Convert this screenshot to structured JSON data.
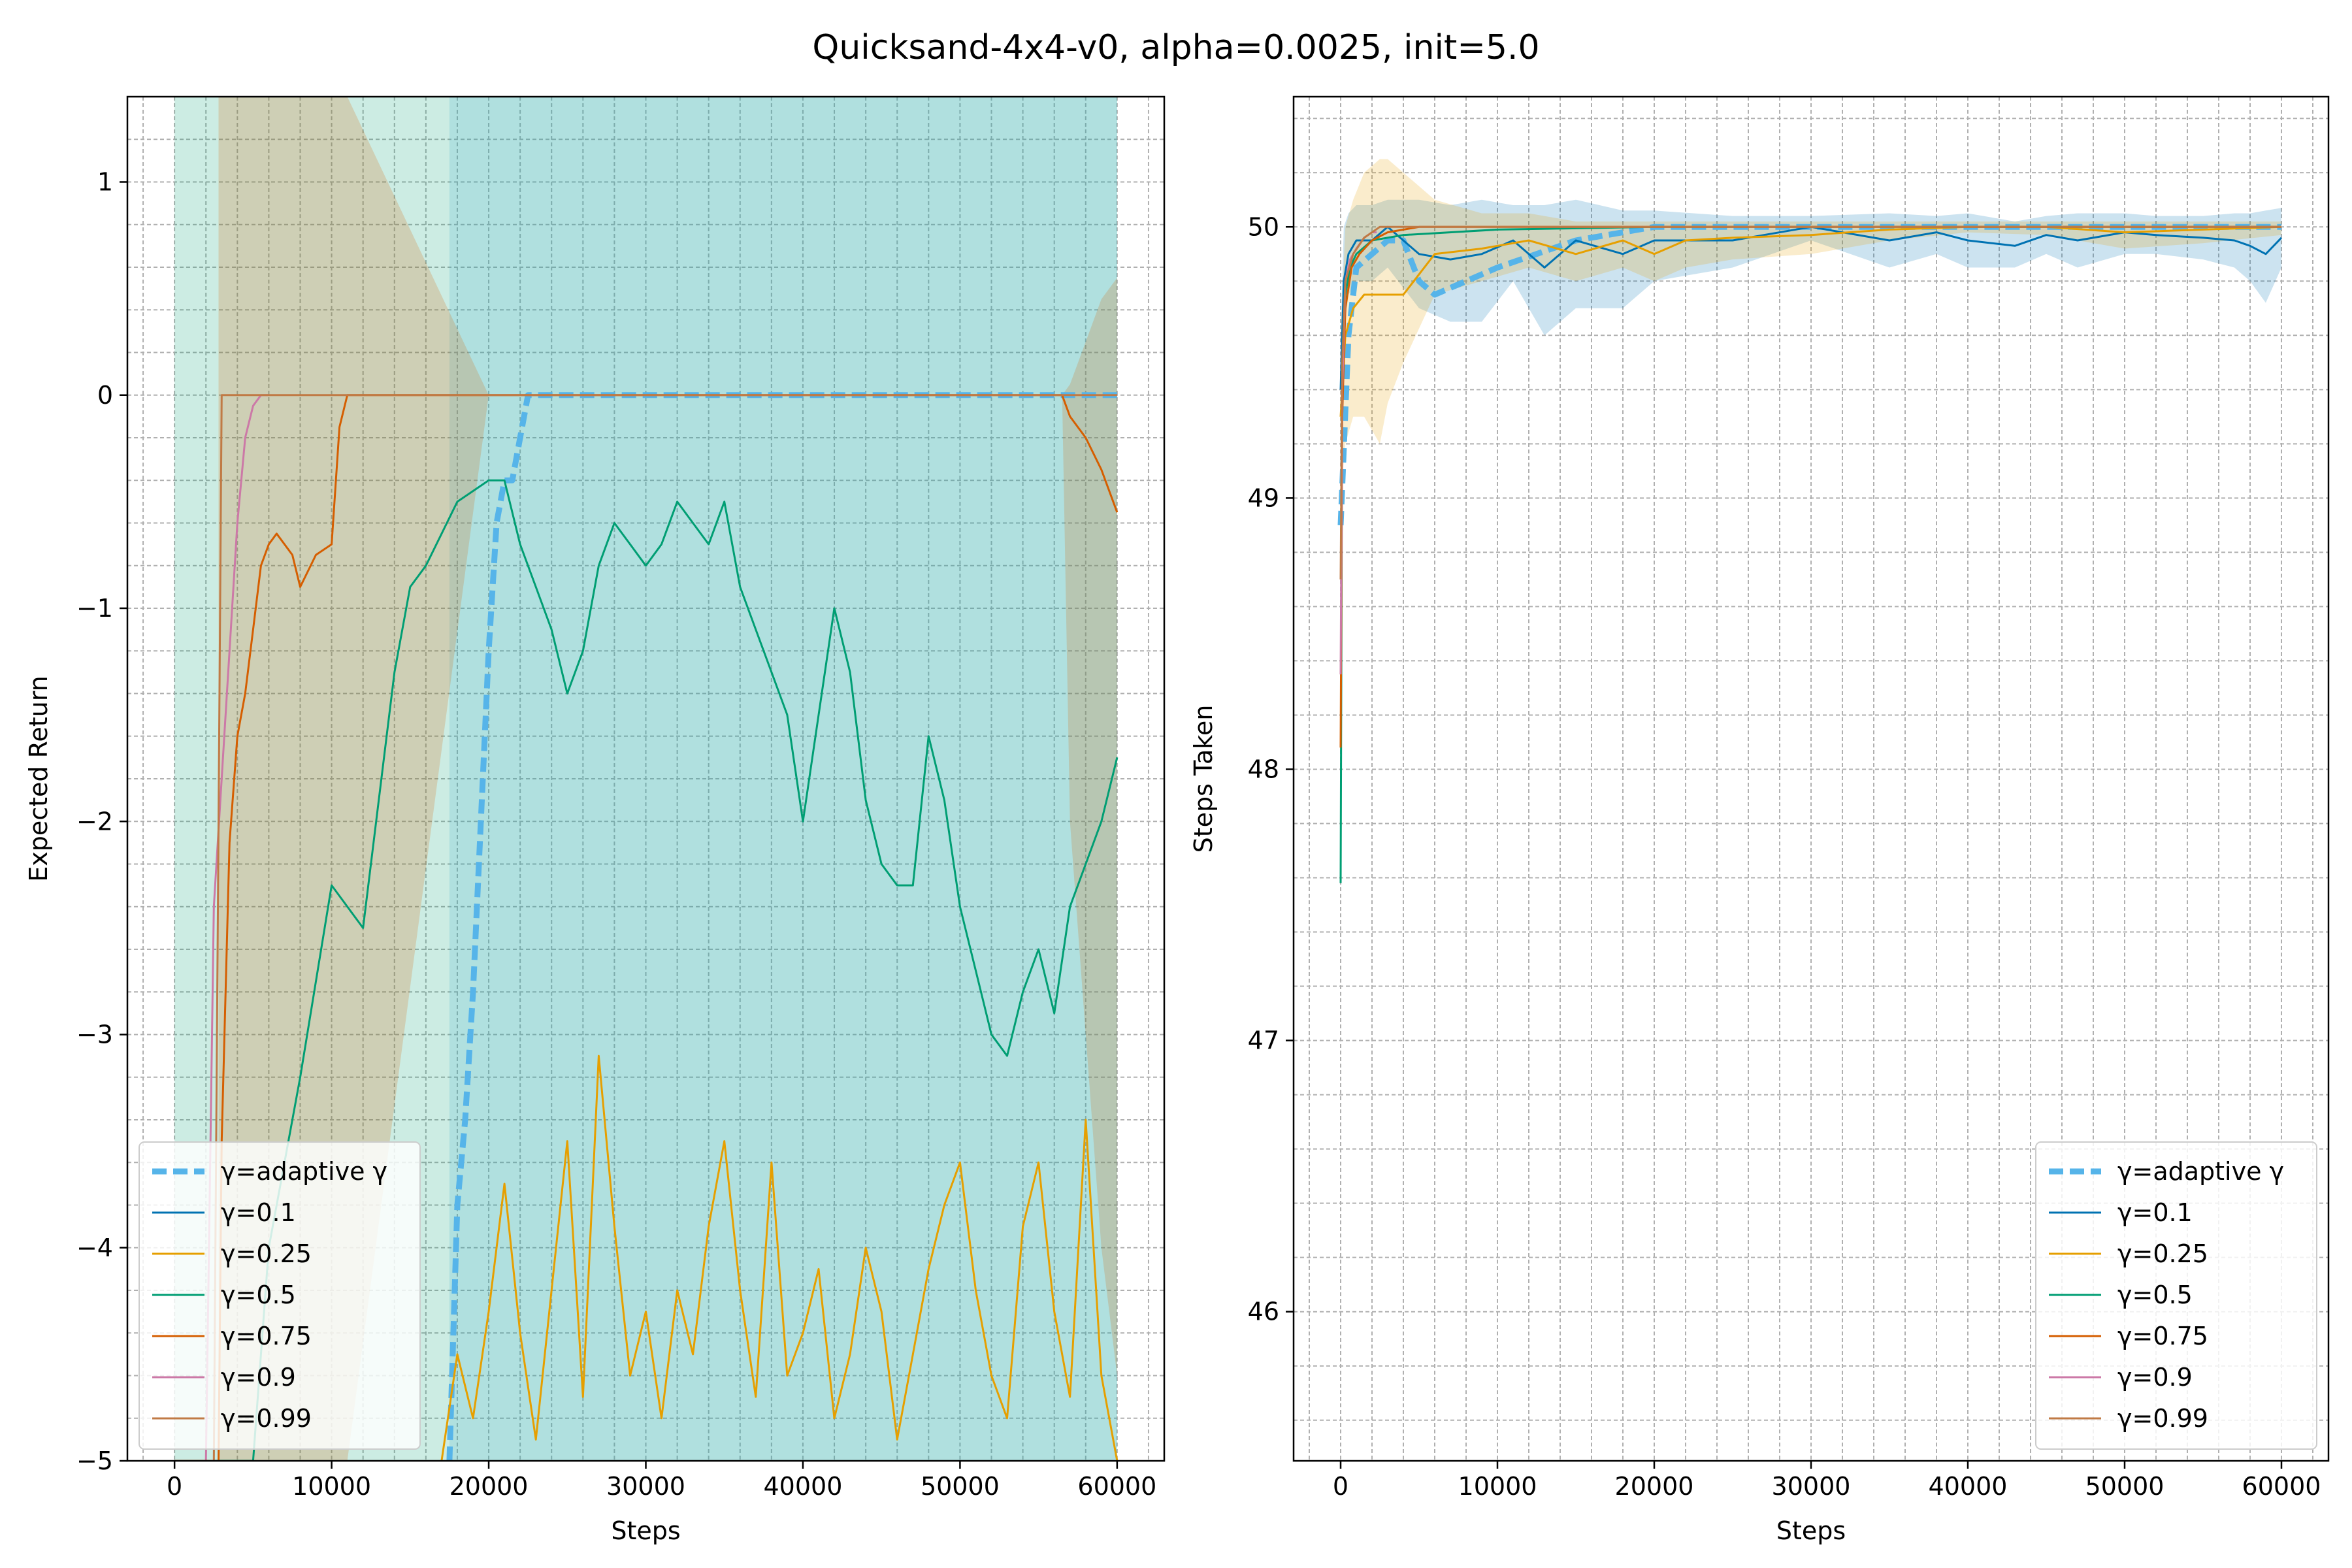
{
  "figure": {
    "title": "Quicksand-4x4-v0, alpha=0.0025, init=5.0"
  },
  "series_styles": [
    {
      "name": "γ=adaptive γ",
      "color": "#56b4e9",
      "dashed": true
    },
    {
      "name": "γ=0.1",
      "color": "#0072b2",
      "dashed": false
    },
    {
      "name": "γ=0.25",
      "color": "#e69f00",
      "dashed": false
    },
    {
      "name": "γ=0.5",
      "color": "#009e73",
      "dashed": false
    },
    {
      "name": "γ=0.75",
      "color": "#d55e00",
      "dashed": false
    },
    {
      "name": "γ=0.9",
      "color": "#cc79a7",
      "dashed": false
    },
    {
      "name": "γ=0.99",
      "color": "#c07a45",
      "dashed": false
    }
  ],
  "chart_data": [
    {
      "type": "line",
      "xlabel": "Steps",
      "ylabel": "Expected Return",
      "xlim": [
        -3000,
        63000
      ],
      "ylim": [
        -5,
        1.4
      ],
      "xticks": [
        0,
        10000,
        20000,
        30000,
        40000,
        50000,
        60000
      ],
      "xtick_labels": [
        "0",
        "10000",
        "20000",
        "30000",
        "40000",
        "50000",
        "60000"
      ],
      "yticks": [
        1,
        0,
        -1,
        -2,
        -3,
        -4,
        -5
      ],
      "ytick_labels": [
        "1",
        "0",
        "−1",
        "−2",
        "−3",
        "−4",
        "−5"
      ],
      "grid": true,
      "legend_position": "lower-left",
      "series": [
        {
          "name": "γ=adaptive γ",
          "x": [
            17500,
            18000,
            18500,
            19000,
            19500,
            20000,
            20500,
            21000,
            21500,
            22000,
            22500,
            24000,
            30000,
            40000,
            50000,
            60000
          ],
          "y": [
            -5,
            -3.8,
            -3.4,
            -2.8,
            -2.0,
            -1.2,
            -0.6,
            -0.4,
            -0.4,
            -0.2,
            0,
            0,
            0,
            0,
            0,
            0
          ],
          "band_low": [
            -5,
            -5,
            -5,
            -5,
            -5,
            -5,
            -5,
            -5,
            -5,
            -5,
            -5,
            -5,
            -5,
            -5,
            -5,
            -5
          ],
          "band_high": [
            1.4,
            1.4,
            1.4,
            1.4,
            1.4,
            1.4,
            1.4,
            1.4,
            1.4,
            1.4,
            1.4,
            1.4,
            1.4,
            1.4,
            1.4,
            1.4
          ]
        },
        {
          "name": "γ=0.1",
          "x": [],
          "y": []
        },
        {
          "name": "γ=0.25",
          "x": [
            17000,
            18000,
            19000,
            20000,
            21000,
            22000,
            23000,
            24000,
            25000,
            26000,
            27000,
            28000,
            29000,
            30000,
            31000,
            32000,
            33000,
            34000,
            35000,
            36000,
            37000,
            38000,
            39000,
            40000,
            41000,
            42000,
            43000,
            44000,
            45000,
            46000,
            47000,
            48000,
            49000,
            50000,
            51000,
            52000,
            53000,
            54000,
            55000,
            56000,
            57000,
            58000,
            59000,
            60000
          ],
          "y": [
            -5,
            -4.5,
            -4.8,
            -4.3,
            -3.7,
            -4.4,
            -4.9,
            -4.2,
            -3.5,
            -4.7,
            -3.1,
            -3.9,
            -4.6,
            -4.3,
            -4.8,
            -4.2,
            -4.5,
            -3.9,
            -3.5,
            -4.2,
            -4.7,
            -3.6,
            -4.6,
            -4.4,
            -4.1,
            -4.8,
            -4.5,
            -4.0,
            -4.3,
            -4.9,
            -4.5,
            -4.1,
            -3.8,
            -3.6,
            -4.2,
            -4.6,
            -4.8,
            -3.9,
            -3.6,
            -4.3,
            -4.7,
            -3.4,
            -4.6,
            -5
          ],
          "band_low": [],
          "band_high": []
        },
        {
          "name": "γ=0.5",
          "x": [
            0,
            2000,
            4000,
            5000,
            6000,
            8000,
            10000,
            12000,
            14000,
            15000,
            16000,
            18000,
            20000,
            21000,
            22000,
            23000,
            24000,
            25000,
            26000,
            27000,
            28000,
            29000,
            30000,
            31000,
            32000,
            33000,
            34000,
            35000,
            36000,
            37000,
            38000,
            39000,
            40000,
            41000,
            42000,
            43000,
            44000,
            45000,
            46000,
            47000,
            48000,
            49000,
            50000,
            51000,
            52000,
            53000,
            54000,
            55000,
            56000,
            57000,
            58000,
            59000,
            60000
          ],
          "y": [
            -5,
            -5,
            -5,
            -5,
            -4.0,
            -3.2,
            -2.3,
            -2.5,
            -1.3,
            -0.9,
            -0.8,
            -0.5,
            -0.4,
            -0.4,
            -0.7,
            -0.9,
            -1.1,
            -1.4,
            -1.2,
            -0.8,
            -0.6,
            -0.7,
            -0.8,
            -0.7,
            -0.5,
            -0.6,
            -0.7,
            -0.5,
            -0.9,
            -1.1,
            -1.3,
            -1.5,
            -2.0,
            -1.5,
            -1.0,
            -1.3,
            -1.9,
            -2.2,
            -2.3,
            -2.3,
            -1.6,
            -1.9,
            -2.4,
            -2.7,
            -3.0,
            -3.1,
            -2.8,
            -2.6,
            -2.9,
            -2.4,
            -2.2,
            -2.0,
            -1.7
          ],
          "band_low": [
            -5,
            -5,
            -5,
            -5,
            -5,
            -5,
            -5,
            -5,
            -5,
            -5,
            -5,
            -5,
            -5,
            -5,
            -5,
            -5,
            -5,
            -5,
            -5,
            -5,
            -5,
            -5,
            -5,
            -5,
            -5,
            -5,
            -5,
            -5,
            -5,
            -5,
            -5,
            -5,
            -5,
            -5,
            -5,
            -5,
            -5,
            -5,
            -5,
            -5,
            -5,
            -5,
            -5,
            -5,
            -5,
            -5,
            -5,
            -5,
            -5,
            -5,
            -5,
            -5,
            -5
          ],
          "band_high": [
            1.4,
            1.4,
            1.4,
            1.4,
            1.4,
            1.4,
            1.4,
            1.4,
            1.4,
            1.4,
            1.4,
            1.4,
            1.4,
            1.4,
            1.4,
            1.4,
            1.4,
            1.4,
            1.4,
            1.4,
            1.4,
            1.4,
            1.4,
            1.4,
            1.4,
            1.4,
            1.4,
            1.4,
            1.4,
            1.4,
            1.4,
            1.4,
            1.4,
            1.4,
            1.4,
            1.4,
            1.4,
            1.4,
            1.4,
            1.4,
            1.4,
            1.4,
            1.4,
            1.4,
            1.4,
            1.4,
            1.4,
            1.4,
            1.4,
            1.4,
            1.4,
            1.4,
            1.4
          ]
        },
        {
          "name": "γ=0.75",
          "x": [
            2800,
            3000,
            3500,
            4000,
            4500,
            5000,
            5500,
            6000,
            6500,
            7000,
            7500,
            8000,
            9000,
            10000,
            10500,
            11000,
            20000,
            40000,
            56500,
            57000,
            58000,
            59000,
            60000
          ],
          "y": [
            -5,
            -3.5,
            -2.1,
            -1.6,
            -1.4,
            -1.1,
            -0.8,
            -0.7,
            -0.65,
            -0.7,
            -0.75,
            -0.9,
            -0.75,
            -0.7,
            -0.15,
            0,
            0,
            0,
            0,
            -0.1,
            -0.2,
            -0.35,
            -0.55
          ],
          "band_low": [
            -5,
            -5,
            -5,
            -5,
            -5,
            -5,
            -5,
            -5,
            -5,
            -5,
            -5,
            -5,
            -5,
            -5,
            -5,
            -5,
            0,
            0,
            0,
            -2.0,
            -3.0,
            -4.0,
            -4.6
          ],
          "band_high": [
            1.4,
            1.4,
            1.4,
            1.4,
            1.4,
            1.4,
            1.4,
            1.4,
            1.4,
            1.4,
            1.4,
            1.4,
            1.4,
            1.4,
            1.4,
            1.4,
            0,
            0,
            0,
            0.05,
            0.25,
            0.45,
            0.55
          ]
        },
        {
          "name": "γ=0.9",
          "x": [
            2000,
            2500,
            3000,
            3500,
            4000,
            4500,
            5000,
            5500,
            6000
          ],
          "y": [
            -5,
            -2.4,
            -1.8,
            -1.2,
            -0.6,
            -0.2,
            -0.05,
            0,
            0
          ],
          "band_low": [],
          "band_high": []
        },
        {
          "name": "γ=0.99",
          "x": [
            0,
            2500,
            3000,
            60000
          ],
          "y": [
            -5,
            -5,
            0,
            0
          ],
          "band_low": [],
          "band_high": []
        }
      ]
    },
    {
      "type": "line",
      "xlabel": "Steps",
      "ylabel": "Steps Taken",
      "xlim": [
        -3000,
        63000
      ],
      "ylim": [
        45.45,
        50.48
      ],
      "xticks": [
        0,
        10000,
        20000,
        30000,
        40000,
        50000,
        60000
      ],
      "xtick_labels": [
        "0",
        "10000",
        "20000",
        "30000",
        "40000",
        "50000",
        "60000"
      ],
      "yticks": [
        50,
        49,
        48,
        47,
        46
      ],
      "ytick_labels": [
        "50",
        "49",
        "48",
        "47",
        "46"
      ],
      "grid": true,
      "legend_position": "lower-right",
      "series": [
        {
          "name": "γ=adaptive γ",
          "x": [
            0,
            500,
            1000,
            2000,
            3000,
            4000,
            5000,
            6000,
            8000,
            10000,
            15000,
            20000,
            25000,
            30000,
            40000,
            50000,
            60000
          ],
          "y": [
            48.9,
            49.6,
            49.85,
            49.9,
            49.95,
            49.95,
            49.8,
            49.75,
            49.8,
            49.85,
            49.95,
            50,
            50,
            50,
            50,
            50,
            50
          ],
          "band_low": [],
          "band_high": []
        },
        {
          "name": "γ=0.1",
          "x": [
            0,
            200,
            500,
            1000,
            2000,
            3000,
            5000,
            7000,
            9000,
            11000,
            13000,
            15000,
            18000,
            20000,
            25000,
            30000,
            35000,
            38000,
            40000,
            43000,
            45000,
            47000,
            50000,
            52000,
            55000,
            57000,
            58000,
            59000,
            60000
          ],
          "y": [
            49.4,
            49.8,
            49.9,
            49.95,
            49.95,
            50,
            49.9,
            49.88,
            49.9,
            49.95,
            49.85,
            49.95,
            49.9,
            49.95,
            49.95,
            50,
            49.95,
            49.98,
            49.95,
            49.93,
            49.97,
            49.95,
            49.98,
            49.97,
            49.96,
            49.95,
            49.93,
            49.9,
            49.96
          ],
          "band_low": [
            49.2,
            49.6,
            49.75,
            49.8,
            49.8,
            49.85,
            49.7,
            49.65,
            49.65,
            49.8,
            49.6,
            49.7,
            49.7,
            49.8,
            49.85,
            49.95,
            49.85,
            49.9,
            49.85,
            49.85,
            49.9,
            49.85,
            49.9,
            49.9,
            49.88,
            49.85,
            49.8,
            49.72,
            49.85
          ],
          "band_high": [
            49.6,
            50,
            50.05,
            50.08,
            50.08,
            50.1,
            50.1,
            50.08,
            50.1,
            50.08,
            50.08,
            50.1,
            50.06,
            50.06,
            50.04,
            50.04,
            50.05,
            50.04,
            50.05,
            50.02,
            50.04,
            50.05,
            50.05,
            50.04,
            50.04,
            50.05,
            50.05,
            50.06,
            50.07
          ]
        },
        {
          "name": "γ=0.25",
          "x": [
            0,
            300,
            800,
            1500,
            2500,
            3000,
            4000,
            6000,
            9000,
            12000,
            15000,
            18000,
            20000,
            22000,
            25000,
            30000,
            35000,
            40000,
            45000,
            50000,
            55000,
            60000
          ],
          "y": [
            49.3,
            49.6,
            49.7,
            49.75,
            49.75,
            49.75,
            49.75,
            49.9,
            49.92,
            49.95,
            49.9,
            49.95,
            49.9,
            49.95,
            49.96,
            49.97,
            49.99,
            50,
            50,
            49.98,
            49.99,
            50
          ],
          "band_low": [
            49.0,
            49.2,
            49.3,
            49.3,
            49.2,
            49.35,
            49.5,
            49.75,
            49.8,
            49.85,
            49.8,
            49.85,
            49.8,
            49.85,
            49.88,
            49.9,
            49.95,
            49.98,
            49.97,
            49.92,
            49.94,
            49.97
          ],
          "band_high": [
            49.6,
            50.0,
            50.1,
            50.2,
            50.25,
            50.25,
            50.2,
            50.1,
            50.05,
            50.05,
            50.02,
            50.02,
            50.02,
            50.02,
            50.02,
            50.02,
            50.02,
            50.02,
            50.02,
            50.02,
            50.02,
            50.02
          ]
        },
        {
          "name": "γ=0.5",
          "x": [
            0,
            100,
            300,
            600,
            1000,
            2000,
            4000,
            10000,
            20000,
            30000,
            40000,
            50000,
            60000
          ],
          "y": [
            47.58,
            49.4,
            49.75,
            49.85,
            49.9,
            49.95,
            49.97,
            49.99,
            50,
            50,
            50,
            50,
            50
          ],
          "band_low": [],
          "band_high": []
        },
        {
          "name": "γ=0.75",
          "x": [
            0,
            100,
            300,
            700,
            1200,
            2000,
            3000,
            5000,
            10000,
            20000,
            40000,
            60000
          ],
          "y": [
            48.08,
            49.3,
            49.7,
            49.85,
            49.9,
            49.95,
            49.98,
            50,
            50,
            50,
            50,
            50
          ],
          "band_low": [],
          "band_high": []
        },
        {
          "name": "γ=0.9",
          "x": [
            0,
            100,
            300,
            600,
            1000,
            1500,
            2000,
            2300
          ],
          "y": [
            48.35,
            49.4,
            49.8,
            49.88,
            49.92,
            49.96,
            49.98,
            49.98
          ],
          "band_low": [],
          "band_high": []
        },
        {
          "name": "γ=0.99",
          "x": [
            0,
            100,
            300,
            800,
            1500,
            2500,
            5000,
            20000,
            40000,
            60000
          ],
          "y": [
            48.7,
            49.5,
            49.8,
            49.9,
            49.96,
            50,
            50,
            50,
            50,
            50
          ],
          "band_low": [],
          "band_high": []
        }
      ]
    }
  ]
}
